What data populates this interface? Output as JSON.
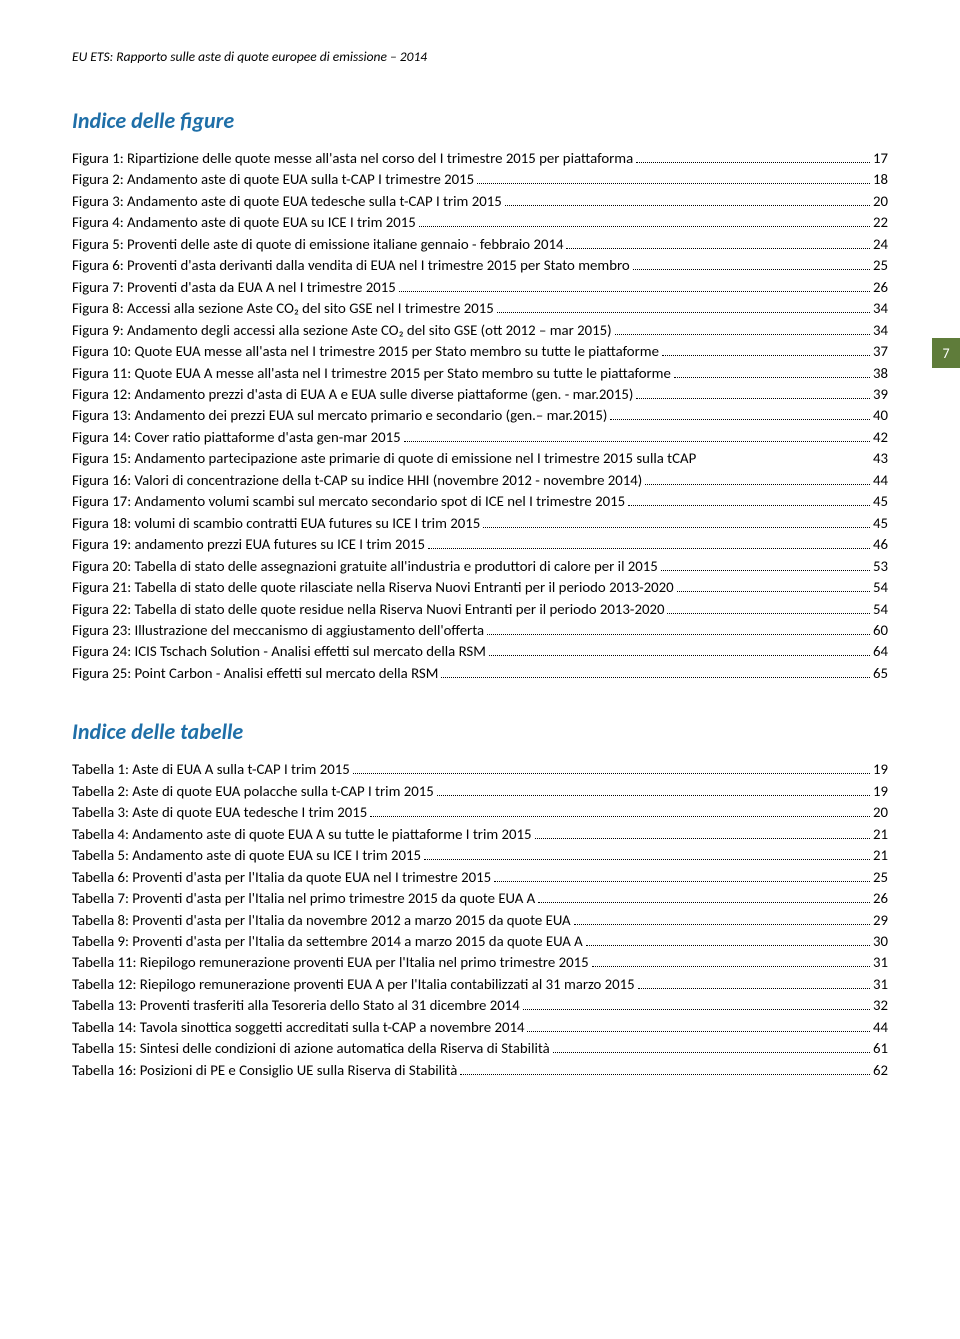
{
  "header": "EU ETS: Rapporto sulle aste di quote europee di emissione – 2014",
  "pageBadge": "7",
  "sections": [
    {
      "title": "Indice delle figure",
      "entries": [
        {
          "label": "Figura 1: Ripartizione delle quote messe all'asta nel corso del I trimestre 2015 per piattaforma",
          "page": "17",
          "dots": true
        },
        {
          "label": "Figura 2: Andamento aste di quote EUA sulla t-CAP I trimestre 2015",
          "page": "18",
          "dots": true
        },
        {
          "label": "Figura 3: Andamento aste di quote EUA tedesche sulla t-CAP I trim 2015",
          "page": "20",
          "dots": true
        },
        {
          "label": "Figura 4: Andamento aste di quote EUA su ICE I trim 2015",
          "page": "22",
          "dots": true
        },
        {
          "label": "Figura 5: Proventi delle aste di quote di emissione italiane gennaio - febbraio 2014",
          "page": "24",
          "dots": true
        },
        {
          "label": "Figura 6: Proventi d'asta derivanti dalla vendita di EUA nel I trimestre 2015 per Stato membro",
          "page": "25",
          "dots": true
        },
        {
          "label": "Figura 7: Proventi d'asta da EUA A nel I trimestre 2015",
          "page": "26",
          "dots": true
        },
        {
          "label": "Figura 8: Accessi alla sezione Aste CO₂ del sito GSE nel I trimestre 2015",
          "page": "34",
          "dots": true
        },
        {
          "label": "Figura 9: Andamento degli accessi alla sezione Aste CO₂ del sito GSE (ott 2012 – mar 2015)",
          "page": "34",
          "dots": true
        },
        {
          "label": "Figura 10: Quote EUA messe all'asta nel I trimestre 2015 per Stato membro su tutte le piattaforme",
          "page": "37",
          "dots": true
        },
        {
          "label": "Figura 11: Quote EUA A messe all'asta nel I trimestre 2015 per Stato membro su tutte le piattaforme",
          "page": "38",
          "dots": true
        },
        {
          "label": "Figura 12: Andamento prezzi d'asta di EUA A e EUA sulle diverse piattaforme (gen. - mar.2015)",
          "page": "39",
          "dots": true
        },
        {
          "label": "Figura 13: Andamento dei prezzi EUA sul mercato primario e secondario (gen.– mar.2015)",
          "page": "40",
          "dots": true
        },
        {
          "label": "Figura 14: Cover ratio piattaforme d'asta gen-mar 2015",
          "page": "42",
          "dots": true
        },
        {
          "label": "Figura 15: Andamento partecipazione aste primarie di quote di emissione nel I trimestre 2015 sulla tCAP",
          "page": "43",
          "dots": false
        },
        {
          "label": "Figura 16: Valori di concentrazione della t-CAP su indice HHI (novembre 2012 - novembre 2014)",
          "page": "44",
          "dots": true
        },
        {
          "label": "Figura 17: Andamento volumi scambi sul mercato secondario spot di ICE nel I trimestre 2015",
          "page": "45",
          "dots": true
        },
        {
          "label": "Figura 18: volumi di scambio contratti EUA futures su ICE I trim 2015",
          "page": "45",
          "dots": true
        },
        {
          "label": "Figura 19: andamento prezzi EUA futures su ICE I trim 2015",
          "page": "46",
          "dots": true
        },
        {
          "label": "Figura 20: Tabella di stato delle assegnazioni gratuite all'industria e produttori di calore per il 2015",
          "page": "53",
          "dots": true
        },
        {
          "label": "Figura 21: Tabella di stato delle quote rilasciate nella Riserva Nuovi Entranti per il periodo 2013-2020",
          "page": "54",
          "dots": true
        },
        {
          "label": "Figura 22: Tabella di stato delle quote residue nella Riserva Nuovi Entranti per il periodo 2013-2020",
          "page": "54",
          "dots": true
        },
        {
          "label": "Figura 23: Illustrazione del meccanismo di aggiustamento dell'offerta",
          "page": "60",
          "dots": true
        },
        {
          "label": "Figura 24: ICIS Tschach Solution - Analisi effetti sul mercato della RSM",
          "page": "64",
          "dots": true
        },
        {
          "label": "Figura 25: Point Carbon - Analisi effetti sul mercato della RSM",
          "page": "65",
          "dots": true
        }
      ]
    },
    {
      "title": "Indice delle tabelle",
      "entries": [
        {
          "label": "Tabella 1: Aste di EUA A sulla t-CAP I trim 2015",
          "page": "19",
          "dots": true
        },
        {
          "label": "Tabella 2: Aste di quote EUA polacche sulla t-CAP I trim 2015",
          "page": "19",
          "dots": true
        },
        {
          "label": "Tabella 3: Aste di quote EUA tedesche I trim 2015",
          "page": "20",
          "dots": true
        },
        {
          "label": "Tabella 4: Andamento aste di quote EUA A su tutte le piattaforme I trim 2015",
          "page": "21",
          "dots": true
        },
        {
          "label": "Tabella 5: Andamento aste di quote EUA su ICE I trim 2015",
          "page": "21",
          "dots": true
        },
        {
          "label": "Tabella 6: Proventi d'asta per l'Italia da quote EUA nel I trimestre 2015",
          "page": "25",
          "dots": true
        },
        {
          "label": "Tabella 7: Proventi d'asta per l'Italia nel primo trimestre 2015 da quote EUA A",
          "page": "26",
          "dots": true
        },
        {
          "label": "Tabella 8: Proventi d'asta per l'Italia da novembre 2012 a marzo 2015 da quote EUA",
          "page": "29",
          "dots": true
        },
        {
          "label": "Tabella 9: Proventi d'asta per l'Italia da settembre 2014 a marzo 2015 da quote EUA A",
          "page": "30",
          "dots": true
        },
        {
          "label": "Tabella 11: Riepilogo remunerazione proventi EUA per l'Italia nel primo trimestre 2015",
          "page": "31",
          "dots": true
        },
        {
          "label": "Tabella 12: Riepilogo remunerazione proventi EUA A per l'Italia contabilizzati al 31 marzo 2015",
          "page": "31",
          "dots": true
        },
        {
          "label": "Tabella 13: Proventi trasferiti alla Tesoreria dello Stato al 31 dicembre 2014",
          "page": "32",
          "dots": true
        },
        {
          "label": "Tabella 14: Tavola sinottica soggetti accreditati sulla t-CAP a novembre 2014",
          "page": "44",
          "dots": true
        },
        {
          "label": "Tabella 15: Sintesi delle condizioni di azione automatica della Riserva di Stabilità",
          "page": "61",
          "dots": true
        },
        {
          "label": "Tabella 16: Posizioni di PE e Consiglio UE sulla Riserva di Stabilità",
          "page": "62",
          "dots": true
        }
      ]
    }
  ]
}
